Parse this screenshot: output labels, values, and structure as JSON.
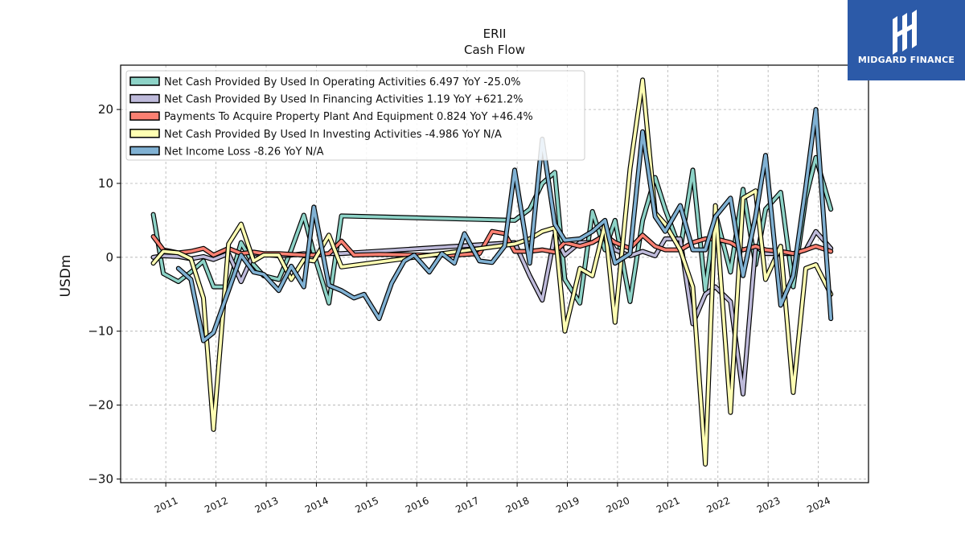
{
  "chart_data": {
    "type": "line",
    "title": "ERII",
    "subtitle": "Cash Flow",
    "ylabel": "USDm",
    "xlabel": "",
    "ylim": [
      -30.5,
      26
    ],
    "xlim": [
      2010.1,
      2025.0
    ],
    "yticks": [
      20,
      10,
      0,
      -10,
      -20,
      -30
    ],
    "ytick_labels": [
      "20",
      "10",
      "0",
      "−10",
      "−20",
      "−30"
    ],
    "xticks": [
      2011,
      2012,
      2013,
      2014,
      2015,
      2016,
      2017,
      2018,
      2019,
      2020,
      2021,
      2022,
      2023,
      2024
    ],
    "xtick_labels": [
      "2011",
      "2012",
      "2013",
      "2014",
      "2015",
      "2016",
      "2017",
      "2018",
      "2019",
      "2020",
      "2021",
      "2022",
      "2023",
      "2024"
    ],
    "grid": true,
    "legend_position": "top-left",
    "series": [
      {
        "name": "Net Cash Provided By Used In Operating Activities  6.497 YoY -25.0%",
        "color": "#8dd3c7",
        "points": [
          [
            2010.75,
            5.8
          ],
          [
            2010.95,
            -2.2
          ],
          [
            2011.25,
            -3.3
          ],
          [
            2011.5,
            -2.0
          ],
          [
            2011.75,
            -0.5
          ],
          [
            2011.95,
            -4.0
          ],
          [
            2012.25,
            -4.0
          ],
          [
            2012.5,
            2.0
          ],
          [
            2012.75,
            -1.0
          ],
          [
            2012.95,
            -2.5
          ],
          [
            2013.25,
            -3.0
          ],
          [
            2013.5,
            1.0
          ],
          [
            2013.75,
            5.7
          ],
          [
            2013.95,
            0.5
          ],
          [
            2014.25,
            -6.2
          ],
          [
            2014.5,
            5.6
          ],
          [
            2017.95,
            5.0
          ],
          [
            2018.25,
            6.5
          ],
          [
            2018.5,
            10.0
          ],
          [
            2018.75,
            11.5
          ],
          [
            2018.95,
            -3.0
          ],
          [
            2019.25,
            -6.2
          ],
          [
            2019.5,
            6.2
          ],
          [
            2019.75,
            1.0
          ],
          [
            2019.95,
            5.0
          ],
          [
            2020.25,
            -6.0
          ],
          [
            2020.5,
            5.0
          ],
          [
            2020.75,
            10.8
          ],
          [
            2020.95,
            6.5
          ],
          [
            2021.25,
            1.0
          ],
          [
            2021.5,
            11.8
          ],
          [
            2021.75,
            -4.5
          ],
          [
            2021.95,
            6.0
          ],
          [
            2022.25,
            -2.0
          ],
          [
            2022.5,
            9.2
          ],
          [
            2022.75,
            -1.0
          ],
          [
            2022.95,
            6.5
          ],
          [
            2023.25,
            8.8
          ],
          [
            2023.5,
            -4.0
          ],
          [
            2023.75,
            8.0
          ],
          [
            2023.95,
            13.5
          ],
          [
            2024.25,
            6.5
          ]
        ]
      },
      {
        "name": "Net Cash Provided By Used In Financing Activities  1.19 YoY +621.2%",
        "color": "#bebada",
        "points": [
          [
            2010.75,
            0.0
          ],
          [
            2010.95,
            0.2
          ],
          [
            2011.25,
            0.1
          ],
          [
            2011.5,
            -0.2
          ],
          [
            2011.75,
            0.1
          ],
          [
            2011.95,
            -0.3
          ],
          [
            2012.25,
            0.5
          ],
          [
            2012.5,
            -3.3
          ],
          [
            2012.75,
            0.5
          ],
          [
            2012.95,
            0.4
          ],
          [
            2013.25,
            0.2
          ],
          [
            2013.5,
            0.3
          ],
          [
            2013.75,
            0.5
          ],
          [
            2013.95,
            0.3
          ],
          [
            2014.25,
            0.5
          ],
          [
            2014.5,
            0.5
          ],
          [
            2017.95,
            2.0
          ],
          [
            2018.25,
            -2.5
          ],
          [
            2018.5,
            -5.8
          ],
          [
            2018.75,
            3.0
          ],
          [
            2018.95,
            0.3
          ],
          [
            2019.25,
            2.0
          ],
          [
            2019.5,
            2.0
          ],
          [
            2019.75,
            3.0
          ],
          [
            2019.95,
            1.0
          ],
          [
            2020.25,
            0.2
          ],
          [
            2020.5,
            0.8
          ],
          [
            2020.75,
            0.2
          ],
          [
            2020.95,
            2.5
          ],
          [
            2021.25,
            2.5
          ],
          [
            2021.5,
            -9.0
          ],
          [
            2021.75,
            -5.0
          ],
          [
            2021.95,
            -4.0
          ],
          [
            2022.25,
            -6.0
          ],
          [
            2022.5,
            -18.5
          ],
          [
            2022.75,
            1.5
          ],
          [
            2022.95,
            0.5
          ],
          [
            2023.25,
            0.5
          ],
          [
            2023.5,
            0.5
          ],
          [
            2023.75,
            1.0
          ],
          [
            2023.95,
            3.5
          ],
          [
            2024.25,
            1.2
          ]
        ]
      },
      {
        "name": "Payments To Acquire Property Plant And Equipment  0.824 YoY +46.4%",
        "color": "#fb8072",
        "points": [
          [
            2010.75,
            2.8
          ],
          [
            2010.95,
            1.0
          ],
          [
            2011.25,
            0.6
          ],
          [
            2011.5,
            0.8
          ],
          [
            2011.75,
            1.2
          ],
          [
            2011.95,
            0.3
          ],
          [
            2012.25,
            1.2
          ],
          [
            2012.5,
            0.5
          ],
          [
            2012.75,
            0.7
          ],
          [
            2012.95,
            0.5
          ],
          [
            2013.25,
            0.5
          ],
          [
            2013.5,
            0.4
          ],
          [
            2013.75,
            0.3
          ],
          [
            2013.95,
            0.3
          ],
          [
            2014.25,
            0.5
          ],
          [
            2014.5,
            2.2
          ],
          [
            2014.75,
            0.3
          ],
          [
            2015.25,
            0.4
          ],
          [
            2016.25,
            0.3
          ],
          [
            2016.75,
            0.3
          ],
          [
            2017.25,
            0.5
          ],
          [
            2017.5,
            3.5
          ],
          [
            2017.75,
            3.2
          ],
          [
            2017.95,
            0.8
          ],
          [
            2018.25,
            0.8
          ],
          [
            2018.5,
            1.0
          ],
          [
            2018.75,
            0.7
          ],
          [
            2018.95,
            2.0
          ],
          [
            2019.25,
            1.5
          ],
          [
            2019.5,
            2.0
          ],
          [
            2019.75,
            3.0
          ],
          [
            2019.95,
            2.0
          ],
          [
            2020.25,
            1.2
          ],
          [
            2020.5,
            3.0
          ],
          [
            2020.75,
            1.5
          ],
          [
            2020.95,
            1.0
          ],
          [
            2021.25,
            1.0
          ],
          [
            2021.5,
            2.0
          ],
          [
            2021.75,
            2.5
          ],
          [
            2021.95,
            2.5
          ],
          [
            2022.25,
            2.0
          ],
          [
            2022.5,
            1.0
          ],
          [
            2022.75,
            1.5
          ],
          [
            2022.95,
            1.0
          ],
          [
            2023.25,
            0.8
          ],
          [
            2023.5,
            0.5
          ],
          [
            2023.75,
            1.0
          ],
          [
            2023.95,
            1.5
          ],
          [
            2024.25,
            0.8
          ]
        ]
      },
      {
        "name": "Net Cash Provided By Used In Investing Activities  -4.986 YoY N/A",
        "color": "#ffffb3",
        "points": [
          [
            2010.75,
            -0.8
          ],
          [
            2010.95,
            0.8
          ],
          [
            2011.25,
            0.6
          ],
          [
            2011.5,
            -0.2
          ],
          [
            2011.75,
            -5.5
          ],
          [
            2011.95,
            -23.3
          ],
          [
            2012.25,
            1.8
          ],
          [
            2012.5,
            4.5
          ],
          [
            2012.75,
            -0.5
          ],
          [
            2012.95,
            0.3
          ],
          [
            2013.25,
            0.3
          ],
          [
            2013.5,
            -3.0
          ],
          [
            2013.75,
            -0.3
          ],
          [
            2013.95,
            -0.5
          ],
          [
            2014.25,
            3.0
          ],
          [
            2014.5,
            -1.3
          ],
          [
            2017.95,
            1.8
          ],
          [
            2018.25,
            2.5
          ],
          [
            2018.5,
            3.5
          ],
          [
            2018.75,
            4.0
          ],
          [
            2018.95,
            -10.0
          ],
          [
            2019.25,
            -1.5
          ],
          [
            2019.5,
            -2.5
          ],
          [
            2019.75,
            4.5
          ],
          [
            2019.95,
            -8.8
          ],
          [
            2020.25,
            12.0
          ],
          [
            2020.5,
            24.0
          ],
          [
            2020.75,
            6.0
          ],
          [
            2020.95,
            4.5
          ],
          [
            2021.25,
            1.0
          ],
          [
            2021.5,
            -4.0
          ],
          [
            2021.75,
            -28.0
          ],
          [
            2021.95,
            7.0
          ],
          [
            2022.25,
            -21.0
          ],
          [
            2022.5,
            8.0
          ],
          [
            2022.75,
            9.0
          ],
          [
            2022.95,
            -3.0
          ],
          [
            2023.25,
            1.5
          ],
          [
            2023.5,
            -18.3
          ],
          [
            2023.75,
            -1.5
          ],
          [
            2023.95,
            -1.0
          ],
          [
            2024.25,
            -5.0
          ]
        ]
      },
      {
        "name": "Net Income Loss  -8.26 YoY N/A",
        "color": "#80b1d3",
        "points": [
          [
            2011.25,
            -1.5
          ],
          [
            2011.5,
            -3.0
          ],
          [
            2011.75,
            -11.3
          ],
          [
            2011.95,
            -10.2
          ],
          [
            2012.25,
            -4.5
          ],
          [
            2012.5,
            0.3
          ],
          [
            2012.75,
            -2.0
          ],
          [
            2012.95,
            -2.3
          ],
          [
            2013.25,
            -4.5
          ],
          [
            2013.5,
            -1.2
          ],
          [
            2013.75,
            -4.0
          ],
          [
            2013.95,
            6.8
          ],
          [
            2014.25,
            -3.8
          ],
          [
            2014.5,
            -4.5
          ],
          [
            2014.75,
            -5.5
          ],
          [
            2014.95,
            -5.0
          ],
          [
            2015.25,
            -8.3
          ],
          [
            2015.5,
            -3.5
          ],
          [
            2015.75,
            -0.5
          ],
          [
            2015.95,
            0.3
          ],
          [
            2016.25,
            -2.0
          ],
          [
            2016.5,
            0.5
          ],
          [
            2016.75,
            -0.8
          ],
          [
            2016.95,
            3.2
          ],
          [
            2017.25,
            -0.5
          ],
          [
            2017.5,
            -0.7
          ],
          [
            2017.75,
            1.5
          ],
          [
            2017.95,
            11.8
          ],
          [
            2018.25,
            -0.8
          ],
          [
            2018.5,
            16.0
          ],
          [
            2018.75,
            4.5
          ],
          [
            2018.95,
            2.3
          ],
          [
            2019.25,
            2.5
          ],
          [
            2019.5,
            3.5
          ],
          [
            2019.75,
            5.0
          ],
          [
            2019.95,
            -0.8
          ],
          [
            2020.25,
            0.5
          ],
          [
            2020.5,
            17.0
          ],
          [
            2020.75,
            5.5
          ],
          [
            2020.95,
            3.5
          ],
          [
            2021.25,
            7.0
          ],
          [
            2021.5,
            1.0
          ],
          [
            2021.75,
            1.0
          ],
          [
            2021.95,
            5.5
          ],
          [
            2022.25,
            8.0
          ],
          [
            2022.5,
            -2.5
          ],
          [
            2022.75,
            5.5
          ],
          [
            2022.95,
            13.8
          ],
          [
            2023.25,
            -6.5
          ],
          [
            2023.5,
            -2.5
          ],
          [
            2023.75,
            9.5
          ],
          [
            2023.95,
            20.0
          ],
          [
            2024.25,
            -8.3
          ]
        ]
      }
    ]
  },
  "logo": {
    "text": "MIDGARD FINANCE",
    "color": "#2c5aa8"
  }
}
